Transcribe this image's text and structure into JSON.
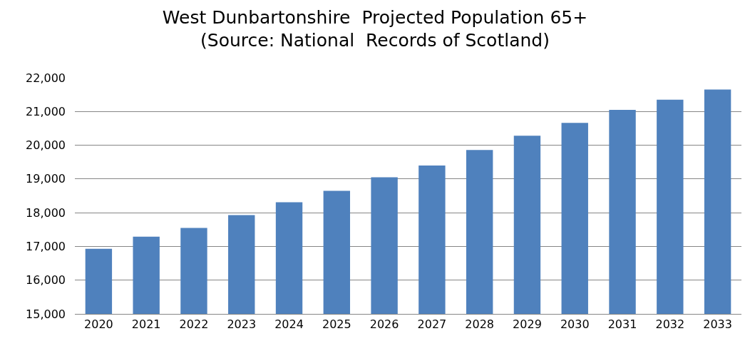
{
  "chart_data": {
    "type": "bar",
    "title": "West Dunbartonshire  Projected Population 65+\n(Source: National  Records of Scotland)",
    "categories": [
      "2020",
      "2021",
      "2022",
      "2023",
      "2024",
      "2025",
      "2026",
      "2027",
      "2028",
      "2029",
      "2030",
      "2031",
      "2032",
      "2033"
    ],
    "values": [
      16930,
      17290,
      17550,
      17930,
      18310,
      18650,
      19050,
      19400,
      19860,
      20280,
      20660,
      21050,
      21350,
      21650
    ],
    "color": "#4f81bd",
    "ylim": [
      15000,
      22000
    ],
    "yticks": [
      {
        "value": 15000,
        "label": "15,000"
      },
      {
        "value": 16000,
        "label": "16,000"
      },
      {
        "value": 17000,
        "label": "17,000"
      },
      {
        "value": 18000,
        "label": "18,000"
      },
      {
        "value": 19000,
        "label": "19,000"
      },
      {
        "value": 20000,
        "label": "20,000"
      },
      {
        "value": 21000,
        "label": "21,000"
      },
      {
        "value": 22000,
        "label": "22,000"
      }
    ],
    "grid": "y"
  }
}
